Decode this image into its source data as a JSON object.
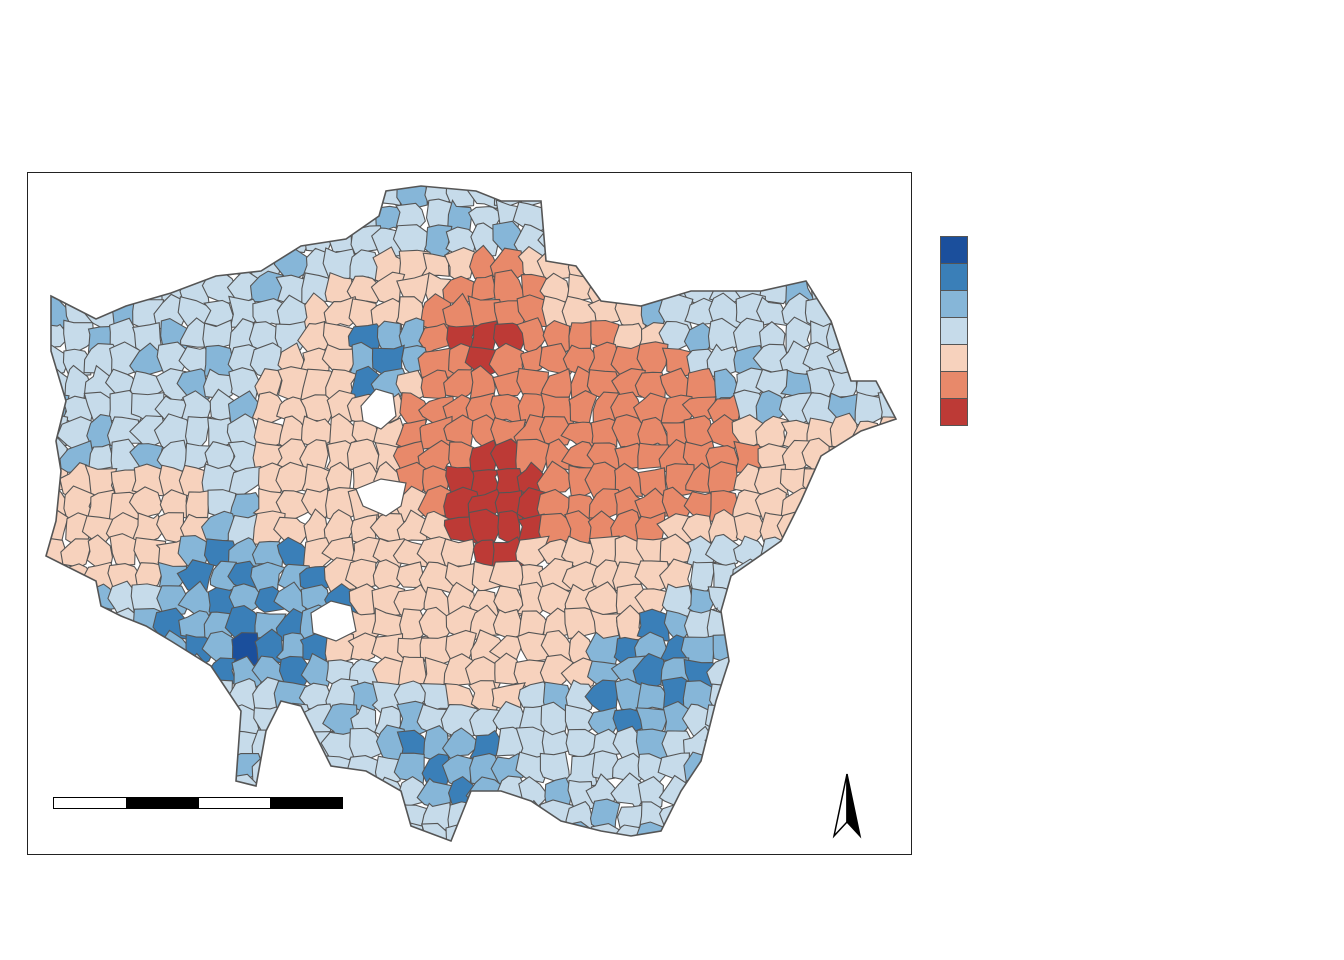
{
  "map": {
    "type": "choropleth",
    "region_outline": "London wards",
    "colors": {
      "class_1": "#1b4f9c",
      "class_2": "#3a7fb8",
      "class_3": "#86b6d8",
      "class_4": "#c6dbea",
      "class_5": "#f7d2bd",
      "class_6": "#e8896a",
      "class_7": "#bd3a36",
      "border": "#555555"
    }
  },
  "legend": {
    "classes": [
      "class_1",
      "class_2",
      "class_3",
      "class_4",
      "class_5",
      "class_6",
      "class_7"
    ]
  },
  "scale_bar": {
    "segments": 4
  },
  "north_arrow": {
    "icon": "north-arrow-icon"
  }
}
